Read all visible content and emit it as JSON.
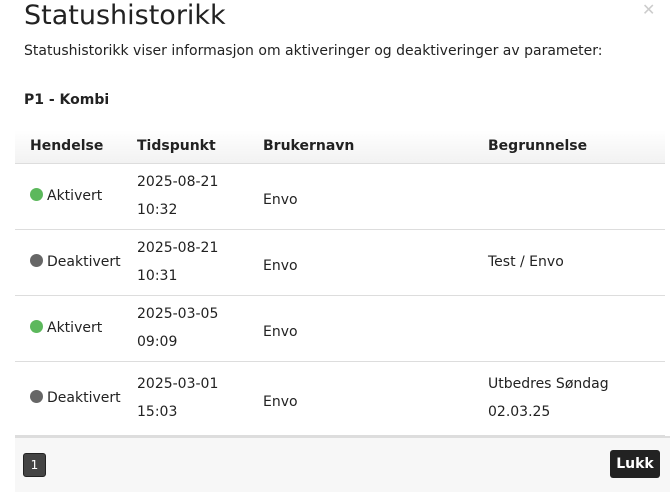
{
  "dialog": {
    "title": "Statushistorikk",
    "close_icon": "close-icon",
    "description": "Statushistorikk viser informasjon om aktiveringer og deaktiveringer av parameter:",
    "parameter": "P1 - Kombi"
  },
  "table": {
    "headers": [
      "Hendelse",
      "Tidspunkt",
      "Brukernavn",
      "Begrunnelse"
    ],
    "rows": [
      {
        "event": "Aktivert",
        "status_color": "#5cb85c",
        "date": "2025-08-21",
        "time": "10:32",
        "user": "Envo",
        "reason": "",
        "reason2": ""
      },
      {
        "event": "Deaktivert",
        "status_color": "#666666",
        "date": "2025-08-21",
        "time": "10:31",
        "user": "Envo",
        "reason": "Test / Envo",
        "reason2": ""
      },
      {
        "event": "Aktivert",
        "status_color": "#5cb85c",
        "date": "2025-03-05",
        "time": "09:09",
        "user": "Envo",
        "reason": "",
        "reason2": ""
      },
      {
        "event": "Deaktivert",
        "status_color": "#666666",
        "date": "2025-03-01",
        "time": "15:03",
        "user": "Envo",
        "reason": "Utbedres Søndag",
        "reason2": "02.03.25"
      }
    ]
  },
  "footer": {
    "page": "1",
    "close_label": "Lukk"
  }
}
